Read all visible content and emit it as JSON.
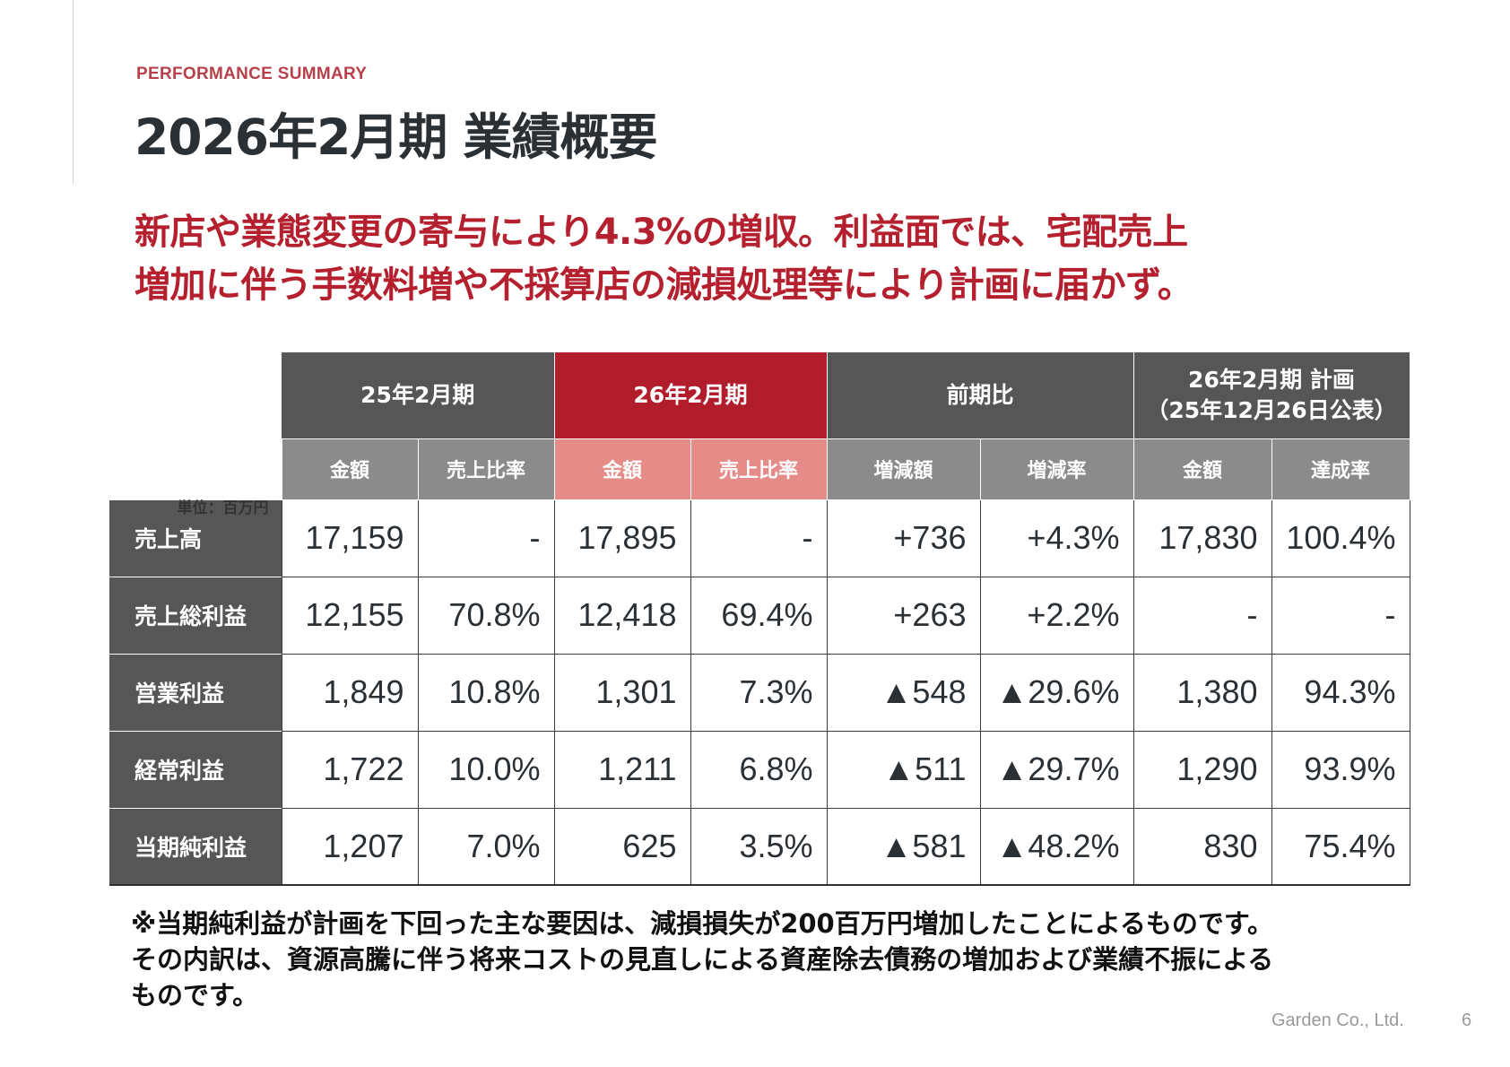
{
  "header": {
    "eyebrow": "PERFORMANCE SUMMARY",
    "title": "2026年2月期 業績概要"
  },
  "headline": {
    "line1": "新店や業態変更の寄与により4.3%の増収。利益面では、宅配売上",
    "line2": "増加に伴う手数料増や不採算店の減損処理等により計画に届かず。"
  },
  "table": {
    "unit": "単位：百万円",
    "groups": [
      {
        "label": "25年2月期"
      },
      {
        "label": "26年2月期"
      },
      {
        "label": "前期比"
      },
      {
        "label_line1": "26年2月期 計画",
        "label_line2": "（25年12月26日公表）"
      }
    ],
    "subheaders": [
      "金額",
      "売上比率",
      "金額",
      "売上比率",
      "増減額",
      "増減率",
      "金額",
      "達成率"
    ],
    "rows": [
      {
        "label": "売上高",
        "cells": [
          "17,159",
          "-",
          "17,895",
          "-",
          "+736",
          "+4.3%",
          "17,830",
          "100.4%"
        ]
      },
      {
        "label": "売上総利益",
        "cells": [
          "12,155",
          "70.8%",
          "12,418",
          "69.4%",
          "+263",
          "+2.2%",
          "-",
          "-"
        ]
      },
      {
        "label": "営業利益",
        "cells": [
          "1,849",
          "10.8%",
          "1,301",
          "7.3%",
          "▲548",
          "▲29.6%",
          "1,380",
          "94.3%"
        ]
      },
      {
        "label": "経常利益",
        "cells": [
          "1,722",
          "10.0%",
          "1,211",
          "6.8%",
          "▲511",
          "▲29.7%",
          "1,290",
          "93.9%"
        ]
      },
      {
        "label": "当期純利益",
        "cells": [
          "1,207",
          "7.0%",
          "625",
          "3.5%",
          "▲581",
          "▲48.2%",
          "830",
          "75.4%"
        ]
      }
    ]
  },
  "note": {
    "line1": "※当期純利益が計画を下回った主な要因は、減損損失が200百万円増加したことによるものです。",
    "line2": "その内訳は、資源高騰に伴う将来コストの見直しによる資産除去債務の増加および業績不振による",
    "line3": "ものです。"
  },
  "footer": {
    "company": "Garden Co., Ltd.",
    "page": "6"
  },
  "colors": {
    "accent_red": "#b21d2c",
    "accent_pink": "#e58b88",
    "header_dark": "#565656",
    "header_mid": "#8b8b8b"
  }
}
